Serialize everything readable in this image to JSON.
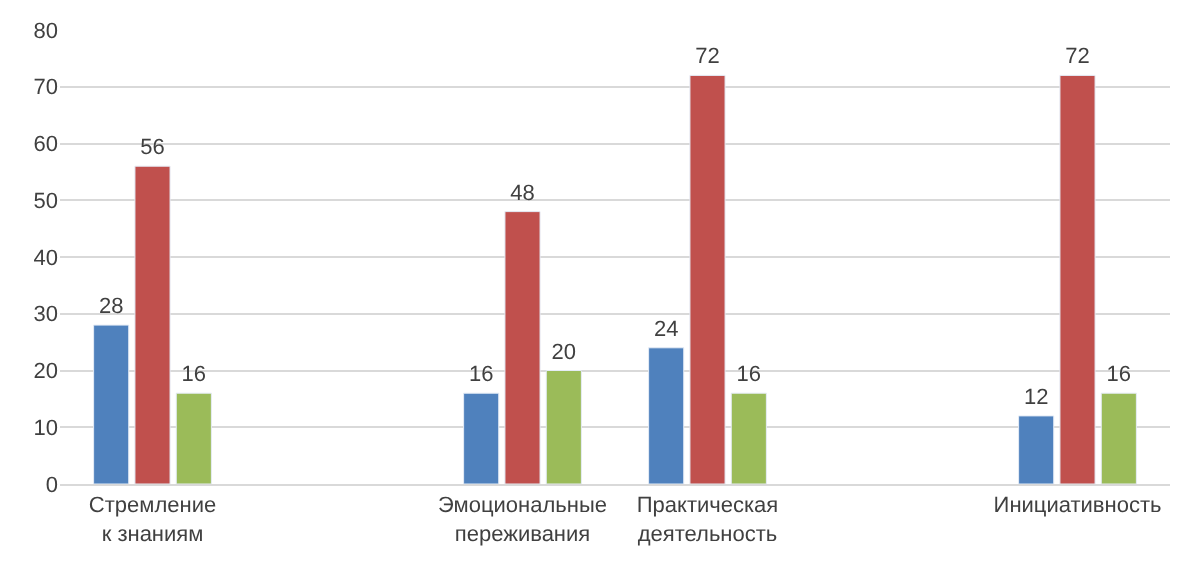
{
  "chart_data": {
    "type": "bar",
    "categories": [
      "Стремление к знаниям",
      null,
      "Эмоциональные переживания",
      "Практическая деятельность",
      null,
      "Инициативность"
    ],
    "series": [
      {
        "color": "#4f81bd",
        "values": [
          28,
          null,
          16,
          24,
          null,
          12
        ]
      },
      {
        "color": "#c0504d",
        "values": [
          56,
          null,
          48,
          72,
          null,
          72
        ]
      },
      {
        "color": "#9bbb59",
        "values": [
          16,
          null,
          20,
          16,
          null,
          16
        ]
      }
    ],
    "ylim": [
      0,
      80
    ],
    "yticks": [
      0,
      10,
      20,
      30,
      40,
      50,
      60,
      70,
      80
    ],
    "grid": "y",
    "data_labels": true
  }
}
